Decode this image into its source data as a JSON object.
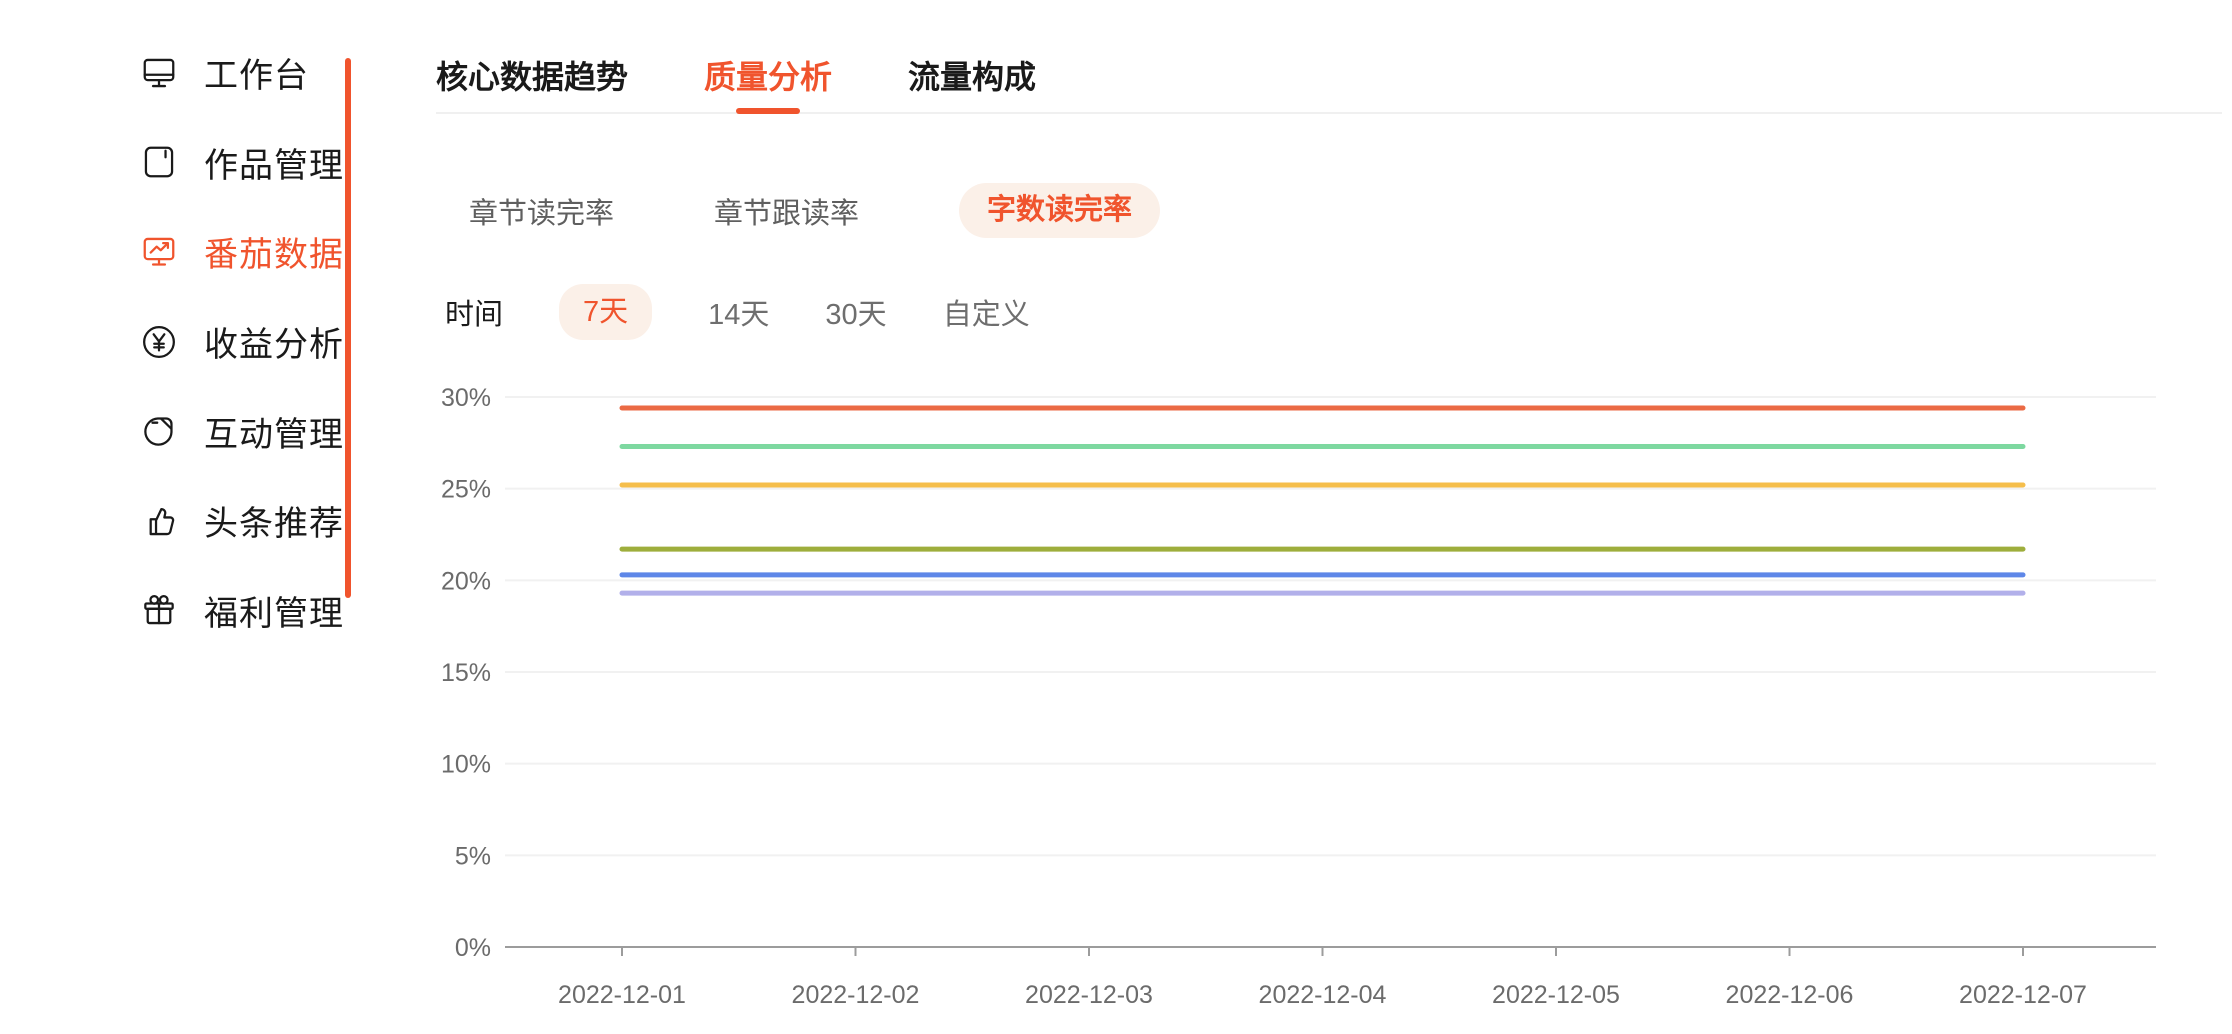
{
  "colors": {
    "accent": "#F0542D",
    "accent_pill_bg": "#FBF0E8"
  },
  "sidebar": {
    "items": [
      {
        "label": "工作台",
        "icon": "workbench-monitor-icon",
        "active": false
      },
      {
        "label": "作品管理",
        "icon": "works-book-icon",
        "active": false
      },
      {
        "label": "番茄数据",
        "icon": "tomato-data-chart-icon",
        "active": true
      },
      {
        "label": "收益分析",
        "icon": "revenue-yuan-icon",
        "active": false
      },
      {
        "label": "互动管理",
        "icon": "interaction-leaf-icon",
        "active": false
      },
      {
        "label": "头条推荐",
        "icon": "toutiao-thumbsup-icon",
        "active": false
      },
      {
        "label": "福利管理",
        "icon": "welfare-gift-icon",
        "active": false
      }
    ]
  },
  "tabs": [
    {
      "label": "核心数据趋势",
      "active": false
    },
    {
      "label": "质量分析",
      "active": true
    },
    {
      "label": "流量构成",
      "active": false
    }
  ],
  "metric_tabs": [
    {
      "label": "章节读完率",
      "active": false
    },
    {
      "label": "章节跟读率",
      "active": false
    },
    {
      "label": "字数读完率",
      "active": true
    }
  ],
  "time_filter": {
    "label": "时间",
    "options": [
      {
        "label": "7天",
        "active": true
      },
      {
        "label": "14天",
        "active": false
      },
      {
        "label": "30天",
        "active": false
      },
      {
        "label": "自定义",
        "active": false
      }
    ]
  },
  "chart_data": {
    "type": "line",
    "x": [
      "2022-12-01",
      "2022-12-02",
      "2022-12-03",
      "2022-12-04",
      "2022-12-05",
      "2022-12-06",
      "2022-12-07"
    ],
    "series": [
      {
        "name": "line-1",
        "color": "#EB6A44",
        "values": [
          29.4,
          29.4,
          29.4,
          29.4,
          29.4,
          29.4,
          29.4
        ]
      },
      {
        "name": "line-2",
        "color": "#7DD8A0",
        "values": [
          27.3,
          27.3,
          27.3,
          27.3,
          27.3,
          27.3,
          27.3
        ]
      },
      {
        "name": "line-3",
        "color": "#F5BE4B",
        "values": [
          25.2,
          25.2,
          25.2,
          25.2,
          25.2,
          25.2,
          25.2
        ]
      },
      {
        "name": "line-4",
        "color": "#9EAE3C",
        "values": [
          21.7,
          21.7,
          21.7,
          21.7,
          21.7,
          21.7,
          21.7
        ]
      },
      {
        "name": "line-5",
        "color": "#5E87E8",
        "values": [
          20.3,
          20.3,
          20.3,
          20.3,
          20.3,
          20.3,
          20.3
        ]
      },
      {
        "name": "line-6",
        "color": "#B2B0EA",
        "values": [
          19.3,
          19.3,
          19.3,
          19.3,
          19.3,
          19.3,
          19.3
        ]
      }
    ],
    "ylim": [
      0,
      30
    ],
    "ytick_step": 5,
    "ytick_labels": [
      "0%",
      "5%",
      "10%",
      "15%",
      "20%",
      "25%",
      "30%"
    ],
    "grid": true,
    "legend": false
  }
}
